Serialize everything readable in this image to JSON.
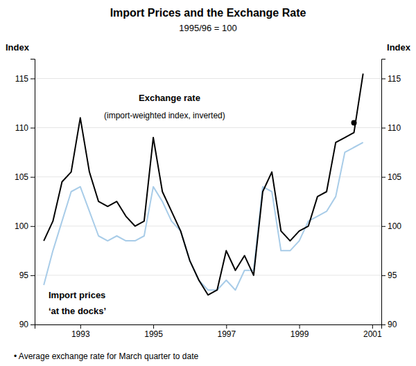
{
  "chart_data": {
    "type": "line",
    "title": "Import Prices and the Exchange Rate",
    "subtitle": "1995/96 = 100",
    "ylabel": "Index",
    "y2label": "Index",
    "footnote": "• Average exchange rate for March quarter to date",
    "annotations": [
      "(import-weighted index, inverted)",
      "‘at the docks’"
    ],
    "x": [
      1992.0,
      1992.25,
      1992.5,
      1992.75,
      1993.0,
      1993.25,
      1993.5,
      1993.75,
      1994.0,
      1994.25,
      1994.5,
      1994.75,
      1995.0,
      1995.25,
      1995.5,
      1995.75,
      1996.0,
      1996.25,
      1996.5,
      1996.75,
      1997.0,
      1997.25,
      1997.5,
      1997.75,
      1998.0,
      1998.25,
      1998.5,
      1998.75,
      1999.0,
      1999.25,
      1999.5,
      1999.75,
      2000.0,
      2000.25,
      2000.5,
      2000.75
    ],
    "series": [
      {
        "name": "Import prices",
        "color": "#a8cce8",
        "type": "line",
        "values": [
          94.0,
          97.5,
          100.5,
          103.5,
          104.0,
          101.5,
          99.0,
          98.5,
          99.0,
          98.5,
          98.5,
          99.0,
          104.0,
          102.5,
          100.5,
          99.5,
          96.5,
          94.5,
          93.5,
          93.5,
          94.5,
          93.5,
          95.5,
          95.5,
          104.0,
          103.5,
          97.5,
          97.5,
          98.5,
          100.5,
          101.0,
          101.5,
          103.0,
          107.5,
          108.0,
          108.5
        ]
      },
      {
        "name": "Exchange rate",
        "color": "#000000",
        "type": "line",
        "values": [
          98.5,
          100.5,
          104.5,
          105.5,
          111.0,
          105.5,
          102.5,
          102.0,
          102.5,
          101.0,
          100.0,
          100.5,
          109.0,
          103.5,
          101.5,
          99.5,
          96.5,
          94.5,
          93.0,
          93.5,
          97.5,
          95.5,
          97.0,
          95.0,
          103.5,
          105.5,
          99.5,
          98.5,
          99.5,
          100.0,
          103.0,
          103.5,
          108.5,
          109.0,
          109.5,
          115.5
        ]
      },
      {
        "color": "#000000",
        "type": "scatter",
        "marker": "circle",
        "x": [
          2000.5
        ],
        "values": [
          110.5
        ]
      }
    ],
    "xlim": [
      1991.75,
      2001.25
    ],
    "xticks": [
      1993,
      1995,
      1997,
      1999,
      2001
    ],
    "ylim": [
      90,
      117
    ],
    "yticks": [
      90,
      95,
      100,
      105,
      110,
      115
    ],
    "y2lim": [
      90,
      117
    ],
    "y2ticks": [
      90,
      95,
      100,
      105,
      110,
      115
    ],
    "grid": true
  }
}
